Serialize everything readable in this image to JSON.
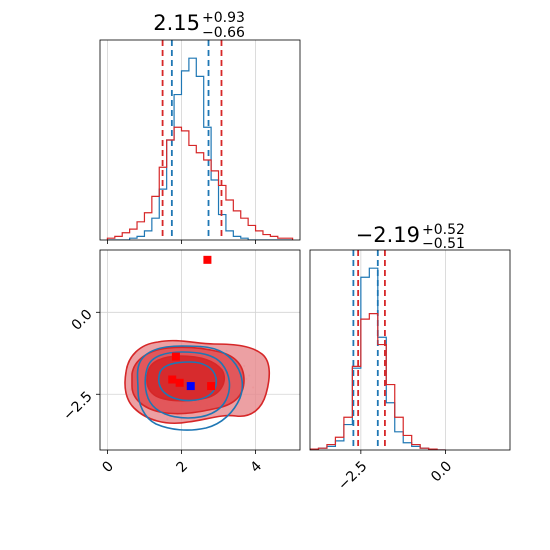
{
  "chart_data": {
    "type": "corner",
    "colors": {
      "series_a": "#1f77b4",
      "series_b": "#d62728",
      "marker_red": "#ff0000",
      "marker_blue": "#0000ff",
      "grid": "#d3d3d3"
    },
    "panels": [
      {
        "id": "hist-param-1",
        "type": "histogram",
        "title": {
          "value": "2.15",
          "plus": "+0.93",
          "minus": "−0.66"
        },
        "xlim": [
          -0.2,
          5.2
        ],
        "grid": true,
        "series": [
          {
            "color": "#1f77b4",
            "bins": [
              0.0,
              0.2,
              0.4,
              0.6,
              0.8,
              1.0,
              1.2,
              1.4,
              1.6,
              1.8,
              2.0,
              2.2,
              2.4,
              2.6,
              2.8,
              3.0,
              3.2,
              3.4,
              3.6,
              3.8,
              4.0,
              4.2,
              4.4,
              4.6,
              4.8,
              5.0
            ],
            "counts": [
              0,
              0,
              0,
              0.01,
              0.02,
              0.05,
              0.12,
              0.28,
              0.55,
              0.8,
              0.93,
              1.0,
              0.9,
              0.62,
              0.33,
              0.14,
              0.05,
              0.02,
              0.01,
              0,
              0,
              0,
              0,
              0,
              0
            ],
            "quantiles": [
              1.74,
              2.73
            ]
          },
          {
            "color": "#d62728",
            "bins": [
              0.0,
              0.2,
              0.4,
              0.6,
              0.8,
              1.0,
              1.2,
              1.4,
              1.6,
              1.8,
              2.0,
              2.2,
              2.4,
              2.6,
              2.8,
              3.0,
              3.2,
              3.4,
              3.6,
              3.8,
              4.0,
              4.2,
              4.4,
              4.6,
              4.8,
              5.0
            ],
            "counts": [
              0.01,
              0.02,
              0.04,
              0.06,
              0.1,
              0.15,
              0.24,
              0.4,
              0.55,
              0.62,
              0.6,
              0.52,
              0.48,
              0.44,
              0.38,
              0.3,
              0.22,
              0.16,
              0.12,
              0.08,
              0.05,
              0.03,
              0.02,
              0.01,
              0.01
            ],
            "quantiles": [
              1.49,
              3.08
            ]
          }
        ],
        "x_ticks": [
          0,
          2,
          4
        ]
      },
      {
        "id": "hist-param-2",
        "type": "histogram",
        "title": {
          "value": "−2.19",
          "plus": "+0.52",
          "minus": "−0.51"
        },
        "xlim": [
          -4.0,
          1.9
        ],
        "grid": true,
        "series": [
          {
            "color": "#1f77b4",
            "bins": [
              -4.0,
              -3.75,
              -3.5,
              -3.25,
              -3.0,
              -2.75,
              -2.5,
              -2.25,
              -2.0,
              -1.75,
              -1.5,
              -1.25,
              -1.0,
              -0.75,
              -0.5,
              -0.25,
              0.0
            ],
            "counts": [
              0,
              0.01,
              0.02,
              0.05,
              0.14,
              0.45,
              0.95,
              1.0,
              0.62,
              0.26,
              0.1,
              0.04,
              0.02,
              0.01,
              0,
              0
            ],
            "quantiles": [
              -2.72,
              -2.0
            ]
          },
          {
            "color": "#d62728",
            "bins": [
              -4.0,
              -3.75,
              -3.5,
              -3.25,
              -3.0,
              -2.75,
              -2.5,
              -2.25,
              -2.0,
              -1.75,
              -1.5,
              -1.25,
              -1.0,
              -0.75,
              -0.5,
              -0.25,
              0.0
            ],
            "counts": [
              0.005,
              0.01,
              0.03,
              0.07,
              0.18,
              0.46,
              0.72,
              0.75,
              0.58,
              0.36,
              0.18,
              0.08,
              0.03,
              0.01,
              0.005,
              0
            ],
            "quantiles": [
              -2.58,
              -1.79
            ]
          }
        ],
        "x_ticks": [
          -2.5,
          0.0
        ],
        "x_tick_labels": [
          "−2.5",
          "0.0"
        ]
      },
      {
        "id": "joint-param-1-2",
        "type": "contour",
        "xlim": [
          -0.2,
          5.2
        ],
        "ylim": [
          -4.2,
          1.9
        ],
        "grid": true,
        "x_ticks": [
          0,
          2,
          4
        ],
        "y_ticks": [
          0.0,
          -2.5
        ],
        "y_tick_labels": [
          "0.0",
          "−2.5"
        ],
        "red_markers": [
          [
            1.85,
            -1.35
          ],
          [
            1.75,
            -2.05
          ],
          [
            1.95,
            -2.15
          ],
          [
            2.8,
            -2.25
          ],
          [
            2.7,
            1.6
          ]
        ],
        "blue_markers": [
          [
            2.25,
            -2.25
          ]
        ]
      }
    ]
  }
}
